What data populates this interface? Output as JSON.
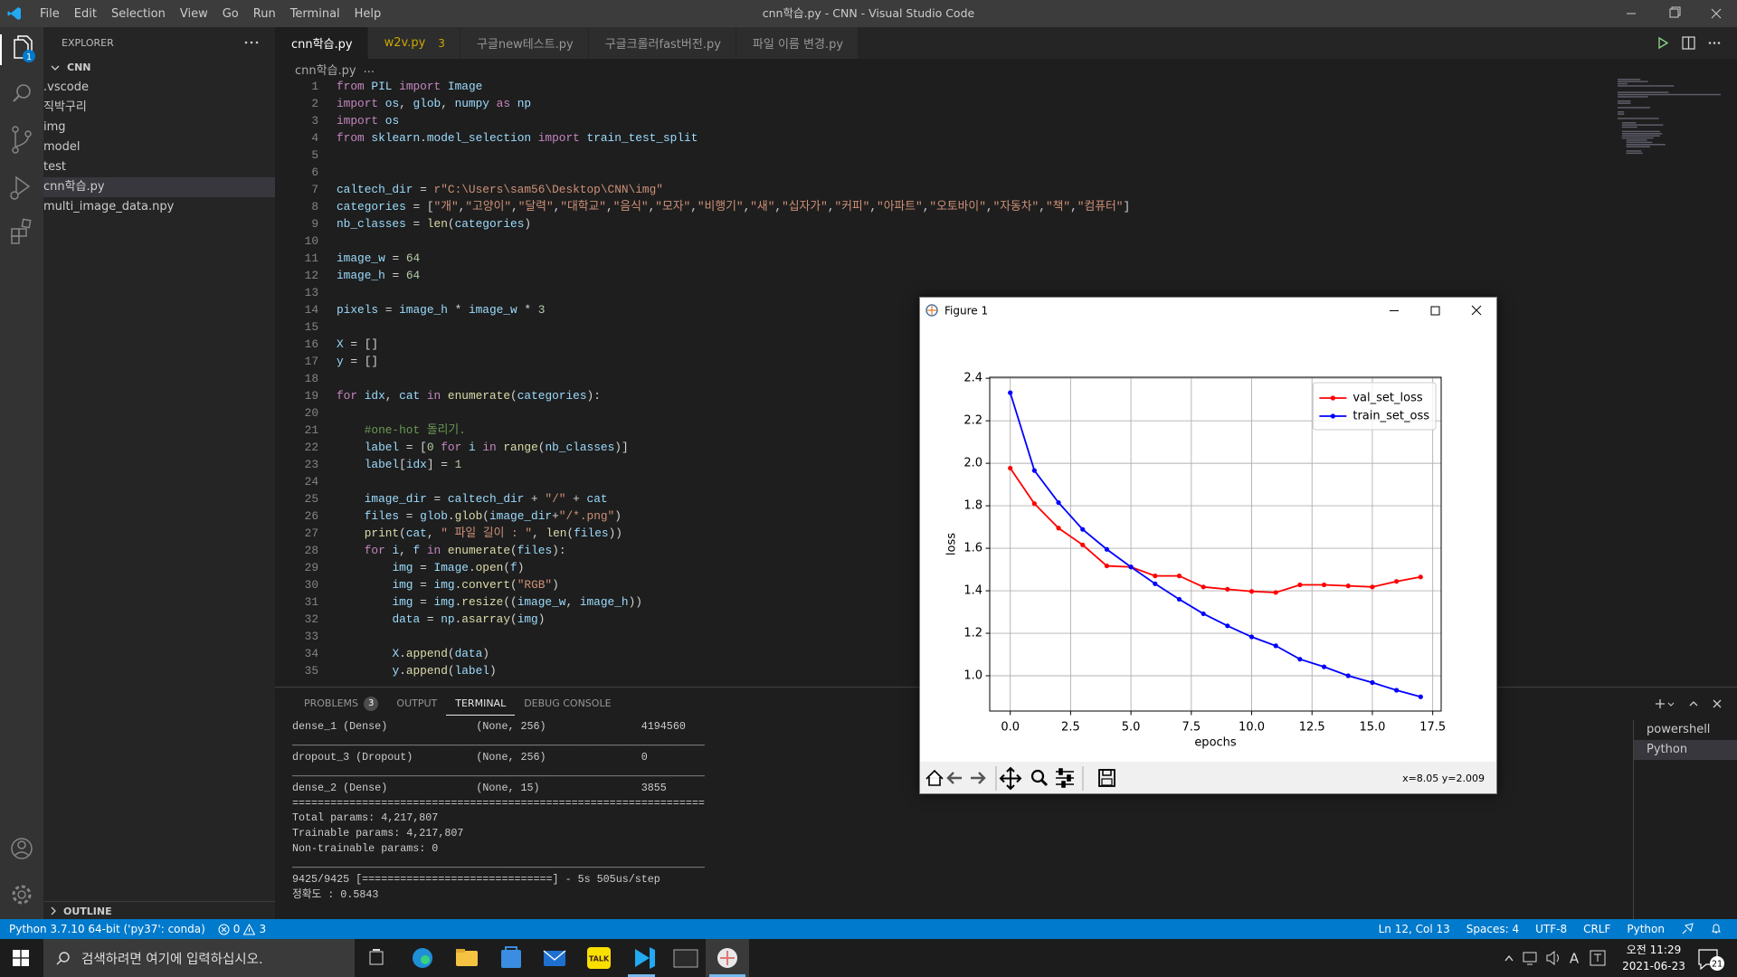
{
  "window": {
    "title": "cnn학습.py - CNN - Visual Studio Code",
    "menu": [
      "File",
      "Edit",
      "Selection",
      "View",
      "Go",
      "Run",
      "Terminal",
      "Help"
    ]
  },
  "activity_bar": {
    "explorer_badge": "1"
  },
  "explorer": {
    "title": "EXPLORER",
    "root": "CNN",
    "folders": [
      ".vscode",
      "직박구리",
      "img",
      "model",
      "test"
    ],
    "files": [
      "cnn학습.py",
      "multi_image_data.npy"
    ],
    "outline": "OUTLINE"
  },
  "tabs": [
    {
      "label": "cnn학습.py"
    },
    {
      "label": "w2v.py",
      "problems": 3
    },
    {
      "label": "구글new테스트.py"
    },
    {
      "label": "구글크롤러fast버전.py"
    },
    {
      "label": "파일 이름 변경.py"
    }
  ],
  "breadcrumb": [
    "cnn학습.py",
    "..."
  ],
  "code": {
    "lines": [
      {
        "number": 1,
        "text": "from PIL import Image"
      },
      {
        "number": 2,
        "text": "import os, glob, numpy as np"
      },
      {
        "number": 3,
        "text": "import os"
      },
      {
        "number": 4,
        "text": "from sklearn.model_selection import train_test_split"
      },
      {
        "number": 5
      },
      {
        "number": 6
      },
      {
        "number": 7,
        "text": "caltech_dir = r\"C:\\Users\\sam56\\Desktop\\CNN\\img\""
      },
      {
        "number": 8,
        "text": "categories = [\"개\",\"고양이\",\"달력\",\"대학교\",\"음식\",\"모자\",\"비행기\",\"새\",\"십자가\",\"커피\",\"아파트\",\"오토바이\",\"자동차\",\"책\",\"컴퓨터\"]"
      },
      {
        "number": 9,
        "text": "nb_classes = len(categories)"
      },
      {
        "number": 10
      },
      {
        "number": 11,
        "text": "image_w = 64"
      },
      {
        "number": 12,
        "text": "image_h = 64"
      },
      {
        "number": 13
      },
      {
        "number": 14,
        "text": "pixels = image_h * image_w * 3"
      },
      {
        "number": 15
      },
      {
        "number": 16,
        "text": "X = []"
      },
      {
        "number": 17,
        "text": "y = []"
      },
      {
        "number": 18
      },
      {
        "number": 19,
        "text": "for idx, cat in enumerate(categories):"
      },
      {
        "number": 20
      },
      {
        "number": 21,
        "text": "    #one-hot 돌리기."
      },
      {
        "number": 22,
        "text": "    label = [0 for i in range(nb_classes)]"
      },
      {
        "number": 23,
        "text": "    label[idx] = 1"
      },
      {
        "number": 24
      },
      {
        "number": 25,
        "text": "    image_dir = caltech_dir + \"/\" + cat"
      },
      {
        "number": 26,
        "text": "    files = glob.glob(image_dir+\"/*.png\")"
      },
      {
        "number": 27,
        "text": "    print(cat, \" 파일 길이 : \", len(files))"
      },
      {
        "number": 28,
        "text": "    for i, f in enumerate(files):"
      },
      {
        "number": 29,
        "text": "        img = Image.open(f)"
      },
      {
        "number": 30,
        "text": "        img = img.convert(\"RGB\")"
      },
      {
        "number": 31,
        "text": "        img = img.resize((image_w, image_h))"
      },
      {
        "number": 32,
        "text": "        data = np.asarray(img)"
      },
      {
        "number": 33
      },
      {
        "number": 34,
        "text": "        X.append(data)"
      },
      {
        "number": 35,
        "text": "        y.append(label)"
      }
    ]
  },
  "panel": {
    "tabs": [
      {
        "label": "PROBLEMS",
        "badge": 3
      },
      {
        "label": "OUTPUT"
      },
      {
        "label": "TERMINAL"
      },
      {
        "label": "DEBUG CONSOLE"
      }
    ],
    "terminal_lines": [
      "dense_1 (Dense)              (None, 256)               4194560",
      "_________________________________________________________________",
      "dropout_3 (Dropout)          (None, 256)               0",
      "_________________________________________________________________",
      "dense_2 (Dense)              (None, 15)                3855",
      "=================================================================",
      "Total params: 4,217,807",
      "Trainable params: 4,217,807",
      "Non-trainable params: 0",
      "_________________________________________________________________",
      "9425/9425 [==============================] - 5s 505us/step",
      "정확도 : 0.5843"
    ],
    "sessions": [
      "powershell",
      "Python"
    ]
  },
  "status_bar": {
    "interpreter": "Python 3.7.10 64-bit ('py37': conda)",
    "errors": 0,
    "warnings": 3,
    "position": "Ln 12, Col 13",
    "indent": "Spaces: 4",
    "encoding": "UTF-8",
    "eol": "CRLF",
    "language": "Python"
  },
  "figure_window": {
    "title": "Figure 1",
    "status": "x=8.05 y=2.009"
  },
  "chart_data": {
    "type": "line",
    "xlabel": "epochs",
    "ylabel": "loss",
    "x": [
      0,
      1,
      2,
      3,
      4,
      5,
      6,
      7,
      8,
      9,
      10,
      11,
      12,
      13,
      14,
      15,
      16,
      17
    ],
    "series": [
      {
        "name": "val_set_loss",
        "color": "#ff0000",
        "values": [
          1.977,
          1.81,
          1.695,
          1.616,
          1.517,
          1.512,
          1.47,
          1.47,
          1.418,
          1.407,
          1.397,
          1.392,
          1.428,
          1.428,
          1.423,
          1.418,
          1.444,
          1.465
        ]
      },
      {
        "name": "train_set_oss",
        "color": "#0000ff",
        "values": [
          2.332,
          1.966,
          1.815,
          1.689,
          1.595,
          1.512,
          1.433,
          1.36,
          1.292,
          1.235,
          1.183,
          1.141,
          1.078,
          1.042,
          1.0,
          0.968,
          0.932,
          0.901
        ]
      }
    ],
    "xlim": [
      -0.85,
      17.85
    ],
    "ylim": [
      0.834,
      2.405
    ],
    "xticks": [
      {
        "value": 0,
        "label": "0.0"
      },
      2.5,
      {
        "value": 5,
        "label": "5.0"
      },
      7.5,
      {
        "value": 10,
        "label": "10.0"
      },
      12.5,
      {
        "value": 15,
        "label": "15.0"
      },
      17.5
    ],
    "yticks": [
      {
        "value": 1,
        "label": "1.0"
      },
      1.2,
      1.4,
      1.6,
      1.8,
      {
        "value": 2,
        "label": "2.0"
      },
      2.2,
      2.4
    ],
    "grid": true,
    "legend": "upper right",
    "marker": "o"
  },
  "taskbar": {
    "search": "검색하려면 여기에 입력하십시오.",
    "talk_icon": "TALK",
    "input": "A",
    "time": "오전 11:29",
    "date": "2021-06-23",
    "notifications": 21
  }
}
